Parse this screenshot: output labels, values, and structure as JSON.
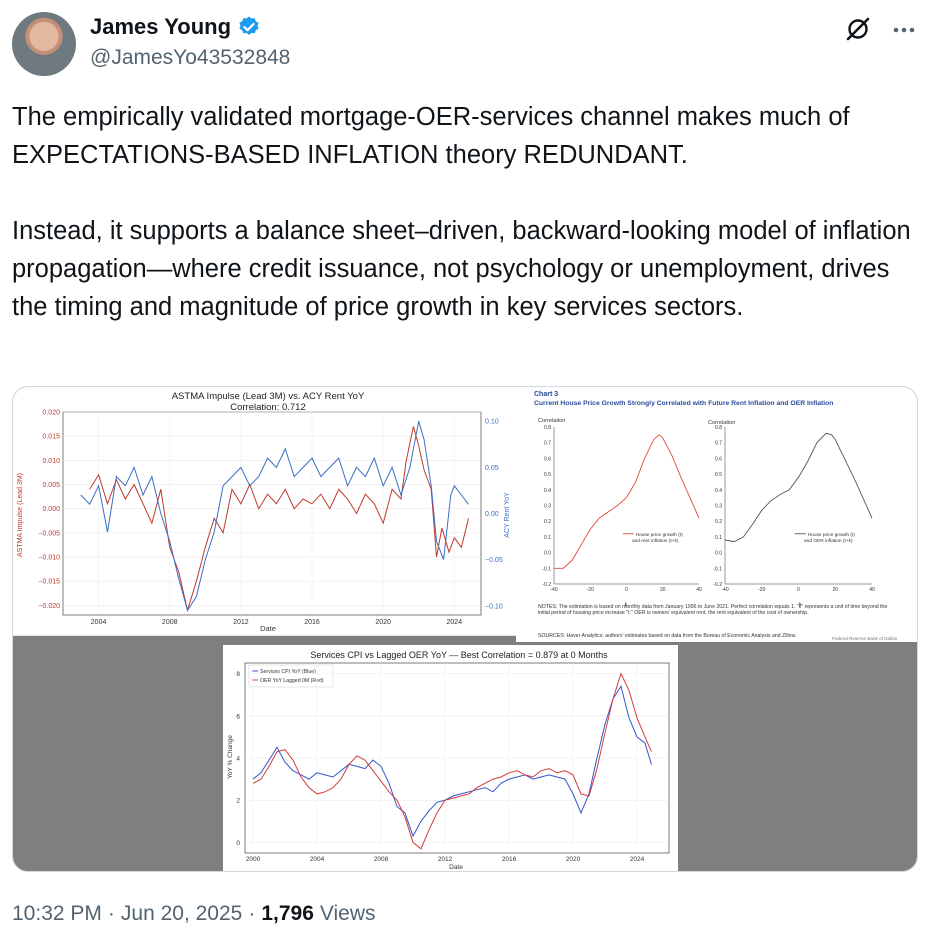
{
  "author": {
    "name": "James Young",
    "handle": "@JamesYo43532848",
    "verified_color": "#1d9bf0"
  },
  "icons": {
    "grok": "grok-slash-icon",
    "more": "more-dots-icon",
    "verified": "verified-badge-icon"
  },
  "tweet": {
    "paragraph1": "The empirically validated mortgage-OER-services channel makes much of EXPECTATIONS-BASED INFLATION theory REDUNDANT.",
    "paragraph2": "Instead, it supports a balance sheet–driven, backward-looking model of inflation propagation—where credit issuance, not psychology or unemployment, drives the timing and magnitude of price growth in key services sectors."
  },
  "footer": {
    "time": "10:32 PM",
    "sep1": "·",
    "date": "Jun 20, 2025",
    "sep2": "·",
    "views_count": "1,796",
    "views_label": "Views"
  },
  "chart_data": [
    {
      "type": "line",
      "title": "ASTMA Impulse (Lead 3M) vs. ACY Rent YoY",
      "subtitle": "Correlation: 0.712",
      "xlabel": "Date",
      "ylabel": "ASTMA Impulse (Lead 3M)",
      "y2label": "ACY Rent YoY",
      "x_ticks": [
        "2004",
        "2008",
        "2012",
        "2016",
        "2020",
        "2024"
      ],
      "y_ticks": [
        "0.020",
        "0.015",
        "0.010",
        "0.005",
        "0.000",
        "−0.005",
        "−0.010",
        "−0.015",
        "−0.020"
      ],
      "y2_ticks": [
        "0.10",
        "0.05",
        "0.00",
        "−0.05",
        "−0.10"
      ],
      "ylim": [
        -0.022,
        0.02
      ],
      "y2lim": [
        -0.11,
        0.11
      ],
      "xlim": [
        2002,
        2025.5
      ],
      "series": [
        {
          "color": "#c0392b",
          "x": [
            2003.5,
            2004,
            2004.5,
            2005,
            2005.5,
            2006,
            2006.5,
            2007,
            2007.5,
            2008,
            2008.5,
            2009,
            2009.5,
            2010,
            2010.5,
            2011,
            2011.5,
            2012,
            2012.5,
            2013,
            2013.5,
            2014,
            2014.5,
            2015,
            2015.5,
            2016,
            2016.5,
            2017,
            2017.5,
            2018,
            2018.5,
            2019,
            2019.5,
            2020,
            2020.5,
            2021,
            2021.3,
            2021.7,
            2022,
            2022.3,
            2022.7,
            2023,
            2023.3,
            2023.7,
            2024,
            2024.4,
            2024.8
          ],
          "y": [
            0.004,
            0.007,
            0.001,
            0.006,
            0.002,
            0.005,
            0.001,
            -0.003,
            0.004,
            -0.008,
            -0.013,
            -0.021,
            -0.015,
            -0.008,
            -0.002,
            -0.005,
            0.004,
            0.001,
            0.005,
            0.0,
            0.003,
            0.001,
            0.004,
            0.0,
            0.002,
            0.001,
            0.003,
            0.0,
            0.004,
            0.002,
            -0.001,
            0.003,
            0.001,
            -0.003,
            0.004,
            0.002,
            0.01,
            0.017,
            0.013,
            0.008,
            0.004,
            -0.01,
            -0.004,
            -0.009,
            -0.006,
            -0.008,
            -0.002
          ]
        },
        {
          "color": "#3a6fc4",
          "axis": "right",
          "x": [
            2003,
            2003.5,
            2004,
            2004.5,
            2005,
            2005.5,
            2006,
            2006.5,
            2007,
            2007.5,
            2008,
            2008.5,
            2009,
            2009.5,
            2010,
            2010.5,
            2011,
            2011.5,
            2012,
            2012.5,
            2013,
            2013.5,
            2014,
            2014.5,
            2015,
            2015.5,
            2016,
            2016.5,
            2017,
            2017.5,
            2018,
            2018.5,
            2019,
            2019.5,
            2020,
            2020.5,
            2021,
            2021.5,
            2022,
            2022.3,
            2022.7,
            2023,
            2023.4,
            2023.8,
            2024,
            2024.4,
            2024.8
          ],
          "y": [
            0.02,
            0.01,
            0.03,
            -0.02,
            0.04,
            0.03,
            0.05,
            0.02,
            0.04,
            0.0,
            -0.03,
            -0.07,
            -0.105,
            -0.09,
            -0.05,
            -0.02,
            0.03,
            0.04,
            0.05,
            0.03,
            0.04,
            0.06,
            0.05,
            0.07,
            0.04,
            0.05,
            0.06,
            0.04,
            0.05,
            0.06,
            0.03,
            0.05,
            0.04,
            0.06,
            0.03,
            0.05,
            0.02,
            0.05,
            0.1,
            0.08,
            0.03,
            -0.03,
            -0.05,
            0.02,
            0.03,
            0.02,
            0.01
          ]
        }
      ]
    },
    {
      "type": "line",
      "title": "Chart 3",
      "subtitle": "Current House Price Growth Strongly Correlated with Future Rent Inflation and OER Inflation",
      "panels": [
        {
          "ylabel": "Correlation",
          "xlabel": "k",
          "legend": "House price growth (t) and rent inflation (t+k)",
          "color": "#e2473b",
          "x": [
            -40,
            -35,
            -30,
            -25,
            -20,
            -15,
            -10,
            -5,
            0,
            5,
            10,
            15,
            18,
            20,
            25,
            30,
            35,
            40
          ],
          "y": [
            -0.1,
            -0.1,
            -0.05,
            0.05,
            0.15,
            0.22,
            0.26,
            0.3,
            0.35,
            0.45,
            0.6,
            0.72,
            0.75,
            0.73,
            0.62,
            0.48,
            0.35,
            0.22
          ]
        },
        {
          "ylabel": "Correlation",
          "xlabel": "k",
          "legend": "House price growth (t) and OER inflation (t+k)",
          "color": "#555555",
          "x": [
            -40,
            -35,
            -30,
            -25,
            -20,
            -15,
            -10,
            -5,
            0,
            5,
            10,
            15,
            18,
            20,
            25,
            30,
            35,
            40
          ],
          "y": [
            0.08,
            0.07,
            0.1,
            0.18,
            0.27,
            0.33,
            0.37,
            0.4,
            0.48,
            0.58,
            0.7,
            0.76,
            0.75,
            0.72,
            0.6,
            0.48,
            0.35,
            0.22
          ]
        }
      ],
      "x_ticks": [
        "-40",
        "-20",
        "0",
        "20",
        "40"
      ],
      "y_ticks": [
        "0.8",
        "0.7",
        "0.6",
        "0.5",
        "0.4",
        "0.3",
        "0.2",
        "0.1",
        "0.0",
        "-0.1",
        "-0.2"
      ],
      "notes": "NOTES: The estimation is based on monthly data from January 1996 to June 2021. Perfect correlation equals 1. \"k\" represents a unit of time beyond the initial period of housing price increase \"t.\" OER is owners' equivalent rent, the rent equivalent of the cost of ownership.",
      "sources": "SOURCES: Haver Analytics; authors' estimates based on data from the Bureau of Economic Analysis and Zillow.",
      "credit": "Federal Reserve Bank of Dallas"
    },
    {
      "type": "line",
      "title": "Services CPI vs Lagged OER YoY — Best Correlation = 0.879 at 0 Months",
      "xlabel": "Date",
      "ylabel": "YoY % Change",
      "x_ticks": [
        "2000",
        "2004",
        "2008",
        "2012",
        "2016",
        "2020",
        "2024"
      ],
      "y_ticks": [
        "8",
        "6",
        "4",
        "2",
        "0"
      ],
      "ylim": [
        -0.5,
        8.5
      ],
      "xlim": [
        1999.5,
        2026
      ],
      "series": [
        {
          "name": "Services CPI YoY (Blue)",
          "color": "#3355cc",
          "x": [
            2000,
            2000.5,
            2001,
            2001.5,
            2002,
            2002.5,
            2003,
            2003.5,
            2004,
            2004.5,
            2005,
            2005.5,
            2006,
            2006.5,
            2007,
            2007.5,
            2008,
            2008.5,
            2009,
            2009.5,
            2010,
            2010.5,
            2011,
            2011.5,
            2012,
            2012.5,
            2013,
            2013.5,
            2014,
            2014.5,
            2015,
            2015.5,
            2016,
            2016.5,
            2017,
            2017.5,
            2018,
            2018.5,
            2019,
            2019.5,
            2020,
            2020.5,
            2021,
            2021.5,
            2022,
            2022.5,
            2023,
            2023.5,
            2024,
            2024.5,
            2024.9
          ],
          "y": [
            3.0,
            3.3,
            3.9,
            4.5,
            3.8,
            3.4,
            3.2,
            3.0,
            3.3,
            3.2,
            3.1,
            3.4,
            3.7,
            3.6,
            3.5,
            3.9,
            3.6,
            2.8,
            1.7,
            1.4,
            0.3,
            1.0,
            1.5,
            1.9,
            2.0,
            2.2,
            2.3,
            2.4,
            2.5,
            2.6,
            2.4,
            2.8,
            3.0,
            3.1,
            3.2,
            3.0,
            3.1,
            3.2,
            3.1,
            3.0,
            2.3,
            1.4,
            2.3,
            4.0,
            5.6,
            6.8,
            7.4,
            5.9,
            5.0,
            4.7,
            3.7
          ]
        },
        {
          "name": "OER YoY Lagged 0M (Red)",
          "color": "#d63b3b",
          "x": [
            2000,
            2000.5,
            2001,
            2001.5,
            2002,
            2002.5,
            2003,
            2003.5,
            2004,
            2004.5,
            2005,
            2005.5,
            2006,
            2006.5,
            2007,
            2007.5,
            2008,
            2008.5,
            2009,
            2009.5,
            2010,
            2010.5,
            2011,
            2011.5,
            2012,
            2012.5,
            2013,
            2013.5,
            2014,
            2014.5,
            2015,
            2015.5,
            2016,
            2016.5,
            2017,
            2017.5,
            2018,
            2018.5,
            2019,
            2019.5,
            2020,
            2020.5,
            2021,
            2021.5,
            2022,
            2022.5,
            2023,
            2023.5,
            2024,
            2024.5,
            2024.9
          ],
          "y": [
            2.8,
            3.0,
            3.6,
            4.3,
            4.4,
            3.9,
            3.1,
            2.6,
            2.3,
            2.4,
            2.6,
            3.0,
            3.7,
            4.1,
            3.9,
            3.4,
            2.9,
            2.4,
            2.0,
            1.2,
            0.0,
            -0.3,
            0.6,
            1.4,
            2.0,
            2.1,
            2.2,
            2.3,
            2.6,
            2.8,
            3.0,
            3.1,
            3.3,
            3.4,
            3.2,
            3.1,
            3.4,
            3.5,
            3.3,
            3.4,
            3.2,
            2.3,
            2.2,
            3.5,
            5.2,
            6.8,
            8.0,
            7.2,
            5.9,
            5.0,
            4.3
          ]
        }
      ]
    }
  ]
}
